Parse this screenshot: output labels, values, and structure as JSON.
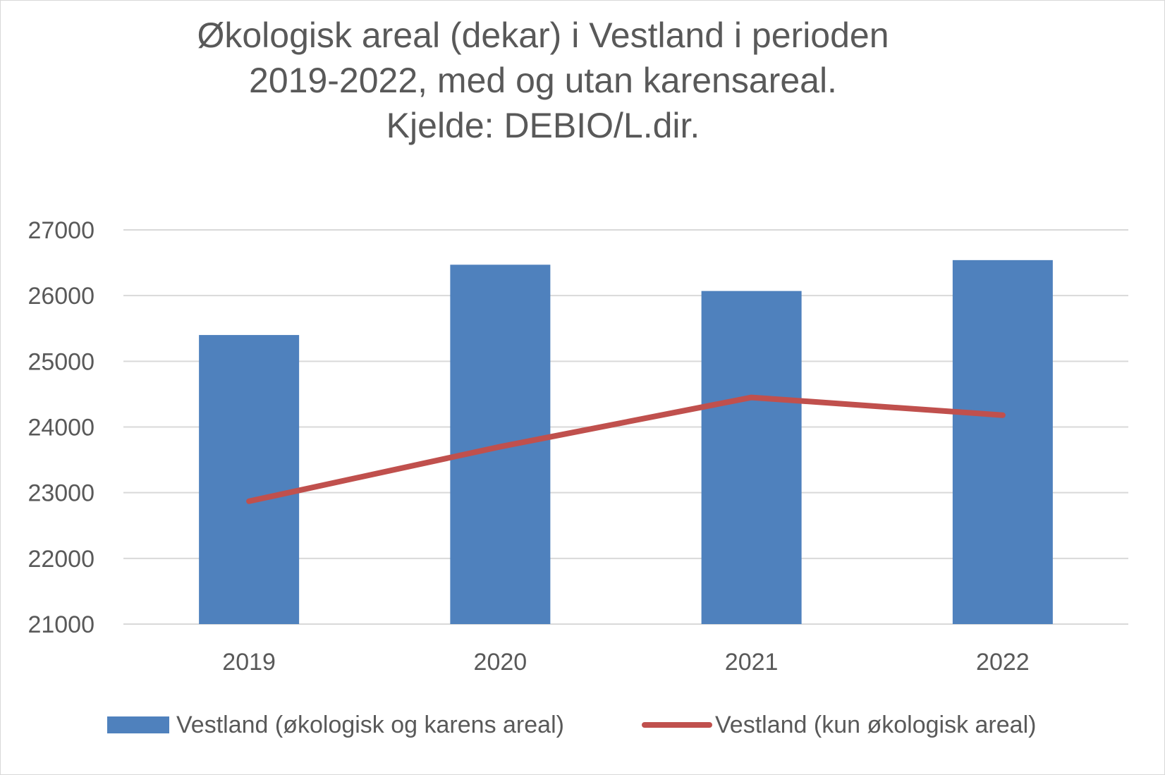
{
  "colors": {
    "bar": "#4f81bd",
    "line": "#c0504d",
    "grid": "#d9d9d9",
    "text": "#595959"
  },
  "chart_data": {
    "type": "bar",
    "title_lines": [
      "Økologisk areal (dekar) i Vestland i perioden",
      "2019-2022, med og utan karensareal.",
      "Kjelde: DEBIO/L.dir."
    ],
    "categories": [
      "2019",
      "2020",
      "2021",
      "2022"
    ],
    "ylim": [
      21000,
      27000
    ],
    "yticks": [
      "21000",
      "22000",
      "23000",
      "24000",
      "25000",
      "26000",
      "27000"
    ],
    "grid": true,
    "legend_position": "bottom",
    "series": [
      {
        "name": "Vestland (økologisk og karens areal)",
        "type": "bar",
        "values": [
          25400,
          26470,
          26070,
          26540
        ]
      },
      {
        "name": "Vestland (kun økologisk areal)",
        "type": "line",
        "values": [
          22870,
          23700,
          24450,
          24180
        ]
      }
    ]
  }
}
